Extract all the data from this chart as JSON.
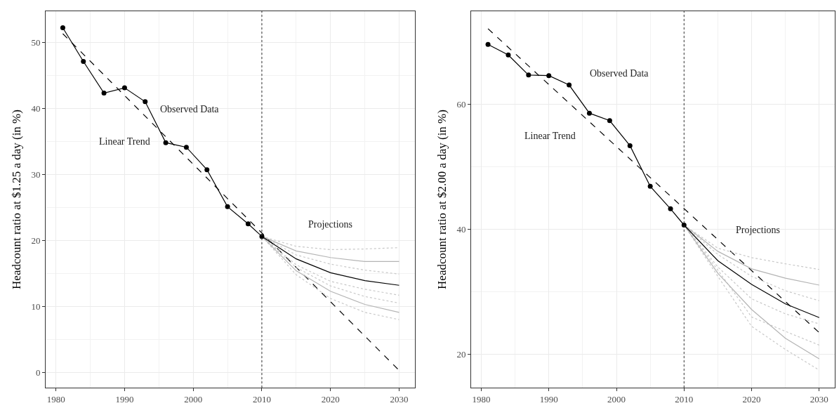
{
  "chart_data": [
    {
      "type": "line",
      "ylabel": "Headcount ratio at $1.25 a day (in %)",
      "xlim": [
        1978.5,
        2032.3
      ],
      "xticks": [
        1980,
        1990,
        2000,
        2010,
        2020,
        2030
      ],
      "ylim": [
        -2.3,
        54.7
      ],
      "yticks": [
        0,
        10,
        20,
        30,
        40,
        50
      ],
      "grid": true,
      "x": [
        1981,
        1984,
        1987,
        1990,
        1993,
        1996,
        1999,
        2002,
        2005,
        2008,
        2010
      ],
      "series": [
        {
          "color": "#000000",
          "marker": "circle",
          "line_style": "solid",
          "values": [
            52.2,
            47.1,
            42.3,
            43.1,
            41.0,
            34.8,
            34.1,
            30.7,
            25.1,
            22.5,
            20.6
          ]
        },
        {
          "color": "#000000",
          "marker": "none",
          "line_style": "dashed",
          "x": [
            1981,
            2030
          ],
          "values": [
            51.3,
            0.3
          ]
        },
        {
          "color": "#c8c8c8",
          "marker": "none",
          "line_style": "dotted",
          "x": [
            2010,
            2015,
            2020,
            2025,
            2030
          ],
          "values": [
            20.6,
            19.1,
            18.6,
            18.7,
            18.9
          ]
        },
        {
          "color": "#c8c8c8",
          "marker": "none",
          "line_style": "dotted",
          "x": [
            2010,
            2015,
            2020,
            2025,
            2030
          ],
          "values": [
            20.6,
            17.8,
            16.4,
            15.5,
            14.9
          ]
        },
        {
          "color": "#c8c8c8",
          "marker": "none",
          "line_style": "dotted",
          "x": [
            2010,
            2015,
            2020,
            2025,
            2030
          ],
          "values": [
            20.6,
            16.3,
            13.8,
            12.6,
            11.7
          ]
        },
        {
          "color": "#c8c8c8",
          "marker": "none",
          "line_style": "dotted",
          "x": [
            2010,
            2015,
            2020,
            2025,
            2030
          ],
          "values": [
            20.6,
            15.9,
            13.1,
            11.5,
            10.5
          ]
        },
        {
          "color": "#c8c8c8",
          "marker": "none",
          "line_style": "dotted",
          "x": [
            2010,
            2015,
            2020,
            2025,
            2030
          ],
          "values": [
            20.6,
            14.8,
            11.2,
            9.1,
            8.0
          ]
        },
        {
          "color": "#b4b4b4",
          "marker": "none",
          "line_style": "solid",
          "x": [
            2010,
            2015,
            2020,
            2025,
            2030
          ],
          "values": [
            20.6,
            18.4,
            17.4,
            16.8,
            16.8
          ]
        },
        {
          "color": "#b4b4b4",
          "marker": "none",
          "line_style": "solid",
          "x": [
            2010,
            2015,
            2020,
            2025,
            2030
          ],
          "values": [
            20.6,
            15.4,
            12.3,
            10.3,
            9.1
          ]
        },
        {
          "color": "#000000",
          "marker": "none",
          "line_style": "solid",
          "x": [
            2010,
            2015,
            2020,
            2025,
            2030
          ],
          "values": [
            20.6,
            17.2,
            15.1,
            13.9,
            13.2
          ]
        }
      ],
      "ref_lines": [
        {
          "axis": "x",
          "value": 2010,
          "label": null,
          "color": "#333333",
          "line_style": "dotted"
        }
      ],
      "annotations": [
        "Observed Data",
        "Linear Trend",
        "Projections"
      ]
    },
    {
      "type": "line",
      "ylabel": "Headcount ratio at $2.00 a day (in %)",
      "xlim": [
        1978.5,
        2032.3
      ],
      "xticks": [
        1980,
        1990,
        2000,
        2010,
        2020,
        2030
      ],
      "ylim": [
        14.7,
        74.9
      ],
      "yticks": [
        20,
        40,
        60
      ],
      "grid": true,
      "x": [
        1981,
        1984,
        1987,
        1990,
        1993,
        1996,
        1999,
        2002,
        2005,
        2008,
        2010
      ],
      "series": [
        {
          "color": "#000000",
          "marker": "circle",
          "line_style": "solid",
          "values": [
            69.6,
            67.9,
            64.7,
            64.6,
            63.1,
            58.6,
            57.4,
            53.4,
            46.9,
            43.3,
            40.7
          ]
        },
        {
          "color": "#000000",
          "marker": "none",
          "line_style": "dashed",
          "x": [
            1981,
            2030
          ],
          "values": [
            72.1,
            23.5
          ]
        },
        {
          "color": "#c8c8c8",
          "marker": "none",
          "line_style": "dotted",
          "x": [
            2010,
            2015,
            2020,
            2025,
            2030
          ],
          "values": [
            40.7,
            37.0,
            35.5,
            34.5,
            33.6
          ]
        },
        {
          "color": "#c8c8c8",
          "marker": "none",
          "line_style": "dotted",
          "x": [
            2010,
            2015,
            2020,
            2025,
            2030
          ],
          "values": [
            40.7,
            36.0,
            32.5,
            30.2,
            28.6
          ]
        },
        {
          "color": "#c8c8c8",
          "marker": "none",
          "line_style": "dotted",
          "x": [
            2010,
            2015,
            2020,
            2025,
            2030
          ],
          "values": [
            40.7,
            34.0,
            28.9,
            26.5,
            24.9
          ]
        },
        {
          "color": "#c8c8c8",
          "marker": "none",
          "line_style": "dotted",
          "x": [
            2010,
            2015,
            2020,
            2025,
            2030
          ],
          "values": [
            40.7,
            33.5,
            26.0,
            23.7,
            21.5
          ]
        },
        {
          "color": "#c8c8c8",
          "marker": "none",
          "line_style": "dotted",
          "x": [
            2010,
            2015,
            2020,
            2025,
            2030
          ],
          "values": [
            40.7,
            32.5,
            24.5,
            20.8,
            17.5
          ]
        },
        {
          "color": "#b4b4b4",
          "marker": "none",
          "line_style": "solid",
          "x": [
            2010,
            2015,
            2020,
            2025,
            2030
          ],
          "values": [
            40.7,
            36.5,
            33.7,
            32.2,
            31.1
          ]
        },
        {
          "color": "#b4b4b4",
          "marker": "none",
          "line_style": "solid",
          "x": [
            2010,
            2015,
            2020,
            2025,
            2030
          ],
          "values": [
            40.7,
            33.0,
            27.2,
            22.6,
            19.3
          ]
        },
        {
          "color": "#000000",
          "marker": "none",
          "line_style": "solid",
          "x": [
            2010,
            2015,
            2020,
            2025,
            2030
          ],
          "values": [
            40.7,
            35.0,
            31.2,
            28.1,
            25.9
          ]
        }
      ],
      "ref_lines": [
        {
          "axis": "x",
          "value": 2010,
          "label": null,
          "color": "#333333",
          "line_style": "dotted"
        }
      ],
      "annotations": [
        "Observed Data",
        "Linear Trend",
        "Projections"
      ]
    }
  ]
}
